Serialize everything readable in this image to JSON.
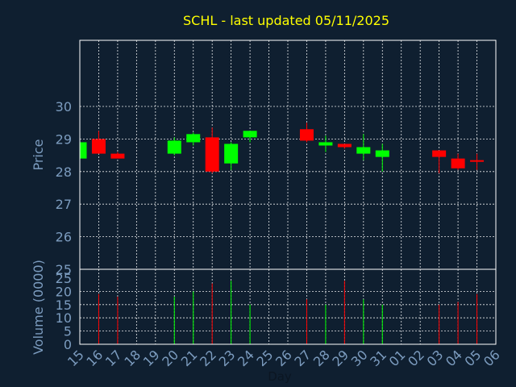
{
  "chart_data": {
    "type": "candlestick",
    "title": "SCHL - last updated 05/11/2025",
    "xlabel": "Day",
    "price_panel": {
      "ylabel": "Price",
      "ylim": [
        25,
        30
      ],
      "yticks": [
        "25",
        "26",
        "27",
        "28",
        "29",
        "30"
      ]
    },
    "volume_panel": {
      "ylabel": "Volume (0000)",
      "ylim": [
        0,
        25
      ],
      "yticks": [
        "0",
        "5",
        "10",
        "15",
        "20",
        "25"
      ]
    },
    "x_ticks": [
      "15",
      "16",
      "17",
      "18",
      "19",
      "20",
      "21",
      "22",
      "23",
      "24",
      "25",
      "26",
      "27",
      "28",
      "29",
      "30",
      "31",
      "01",
      "02",
      "03",
      "04",
      "05",
      "06"
    ],
    "grid": true,
    "colors": {
      "up": "#00ff00",
      "down": "#ff0000",
      "title": "#ffff00",
      "axis_text": "#7c9cbf",
      "background": "#0f1f30",
      "grid": "#ffffff"
    },
    "candles": [
      {
        "day": "15",
        "open": 28.4,
        "high": 28.9,
        "low": 28.4,
        "close": 28.9,
        "volume": 0
      },
      {
        "day": "16",
        "open": 29.0,
        "high": 29.25,
        "low": 28.55,
        "close": 28.55,
        "volume": 19
      },
      {
        "day": "17",
        "open": 28.55,
        "high": 28.6,
        "low": 28.4,
        "close": 28.4,
        "volume": 18
      },
      {
        "day": "20",
        "open": 28.55,
        "high": 29.05,
        "low": 28.5,
        "close": 28.95,
        "volume": 18
      },
      {
        "day": "21",
        "open": 28.9,
        "high": 29.2,
        "low": 28.8,
        "close": 29.15,
        "volume": 20
      },
      {
        "day": "22",
        "open": 29.05,
        "high": 29.35,
        "low": 27.95,
        "close": 28.0,
        "volume": 23
      },
      {
        "day": "23",
        "open": 28.25,
        "high": 28.9,
        "low": 28.05,
        "close": 28.85,
        "volume": 24
      },
      {
        "day": "24",
        "open": 29.05,
        "high": 29.25,
        "low": 28.9,
        "close": 29.25,
        "volume": 15
      },
      {
        "day": "27",
        "open": 29.3,
        "high": 29.5,
        "low": 28.9,
        "close": 28.95,
        "volume": 17
      },
      {
        "day": "28",
        "open": 28.8,
        "high": 29.1,
        "low": 28.6,
        "close": 28.9,
        "volume": 15
      },
      {
        "day": "29",
        "open": 28.85,
        "high": 28.85,
        "low": 28.7,
        "close": 28.75,
        "volume": 24
      },
      {
        "day": "30",
        "open": 28.55,
        "high": 29.15,
        "low": 28.35,
        "close": 28.75,
        "volume": 17
      },
      {
        "day": "31",
        "open": 28.45,
        "high": 28.85,
        "low": 28.0,
        "close": 28.65,
        "volume": 15
      },
      {
        "day": "03",
        "open": 28.65,
        "high": 28.65,
        "low": 27.95,
        "close": 28.45,
        "volume": 15
      },
      {
        "day": "04",
        "open": 28.4,
        "high": 28.55,
        "low": 28.05,
        "close": 28.1,
        "volume": 16
      },
      {
        "day": "05",
        "open": 28.35,
        "high": 28.55,
        "low": 28.05,
        "close": 28.3,
        "volume": 19
      }
    ]
  }
}
